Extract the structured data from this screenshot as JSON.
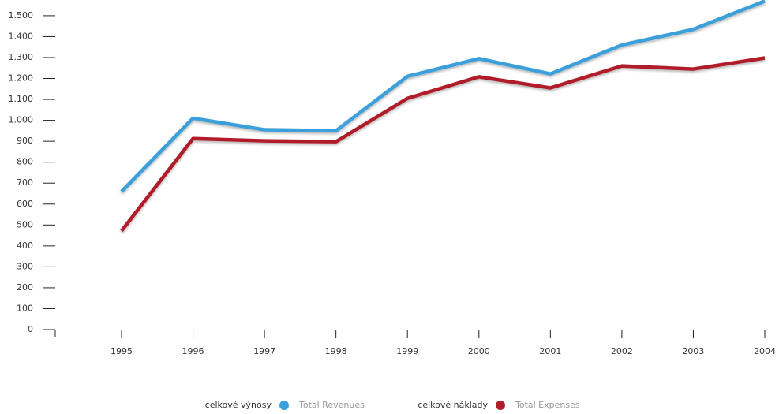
{
  "chart_data": {
    "type": "line",
    "categories": [
      "1995",
      "1996",
      "1997",
      "1998",
      "1999",
      "2000",
      "2001",
      "2002",
      "2003",
      "2004"
    ],
    "series": [
      {
        "name": "Total Revenues",
        "local_name": "celkové výnosy",
        "color": "#3a9fdc",
        "values": [
          660,
          1010,
          955,
          950,
          1210,
          1295,
          1222,
          1360,
          1435,
          1570
        ]
      },
      {
        "name": "Total Expenses",
        "local_name": "celkové náklady",
        "color": "#b01e2a",
        "values": [
          472,
          913,
          902,
          898,
          1105,
          1208,
          1155,
          1260,
          1245,
          1298
        ]
      }
    ],
    "ylim": [
      0,
      1575
    ],
    "yticks": [
      0,
      100,
      200,
      300,
      400,
      500,
      600,
      700,
      800,
      900,
      {
        "value": 1000,
        "label": "1.000"
      },
      {
        "value": 1100,
        "label": "1.100"
      },
      {
        "value": 1200,
        "label": "1.200"
      },
      {
        "value": 1300,
        "label": "1.300"
      },
      {
        "value": 1400,
        "label": "1.400"
      },
      {
        "value": 1500,
        "label": "1.500"
      }
    ]
  }
}
